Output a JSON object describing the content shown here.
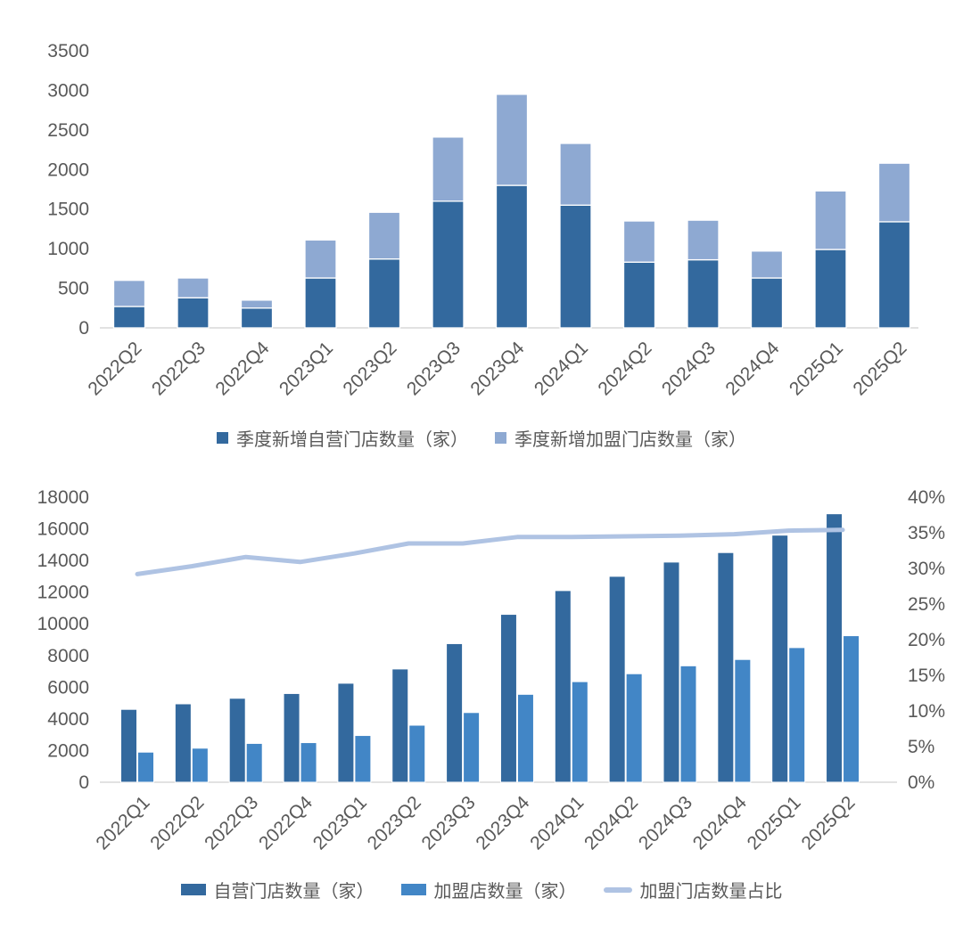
{
  "colors": {
    "self_operated_dark": "#33699E",
    "franchise_pale": "#8EA9D2",
    "franchise_medium": "#4286C6",
    "ratio_line": "#AFC3E3",
    "axis_text": "#595959",
    "axis_line": "#D9D9D9"
  },
  "chart_data": [
    {
      "type": "bar",
      "variant": "stacked",
      "title": "",
      "categories": [
        "2022Q2",
        "2022Q3",
        "2022Q4",
        "2023Q1",
        "2023Q2",
        "2023Q3",
        "2023Q4",
        "2024Q1",
        "2024Q2",
        "2024Q3",
        "2024Q4",
        "2025Q1",
        "2025Q2"
      ],
      "series": [
        {
          "name": "季度新增自营门店数量（家）",
          "color_key": "self_operated_dark",
          "values": [
            270,
            380,
            250,
            630,
            870,
            1600,
            1800,
            1550,
            830,
            860,
            630,
            990,
            1340
          ]
        },
        {
          "name": "季度新增加盟门店数量（家）",
          "color_key": "franchise_pale",
          "values": [
            330,
            250,
            100,
            480,
            590,
            810,
            1150,
            780,
            520,
            500,
            340,
            740,
            740
          ]
        }
      ],
      "ylim": [
        0,
        3500
      ],
      "ytick_step": 500,
      "grid": false,
      "legend_position": "bottom"
    },
    {
      "type": "bar",
      "variant": "grouped-with-line",
      "title": "",
      "categories": [
        "2022Q1",
        "2022Q2",
        "2022Q3",
        "2022Q4",
        "2023Q1",
        "2023Q2",
        "2023Q3",
        "2023Q4",
        "2024Q1",
        "2024Q2",
        "2024Q3",
        "2024Q4",
        "2025Q1",
        "2025Q2"
      ],
      "series": [
        {
          "name": "自营门店数量（家）",
          "color_key": "self_operated_dark",
          "values": [
            4600,
            4950,
            5300,
            5600,
            6250,
            7150,
            8750,
            10600,
            12100,
            13000,
            13900,
            14500,
            15600,
            16950
          ]
        },
        {
          "name": "加盟店数量（家）",
          "color_key": "franchise_medium",
          "values": [
            1900,
            2150,
            2450,
            2500,
            2950,
            3600,
            4400,
            5550,
            6350,
            6850,
            7350,
            7750,
            8500,
            9250
          ]
        }
      ],
      "line_series": {
        "name": "加盟门店数量占比",
        "color_key": "ratio_line",
        "axis": "right",
        "values_pct": [
          29.2,
          30.3,
          31.6,
          30.9,
          32.1,
          33.5,
          33.5,
          34.4,
          34.4,
          34.5,
          34.6,
          34.8,
          35.3,
          35.4
        ]
      },
      "ylim": [
        0,
        18000
      ],
      "ytick_step": 2000,
      "y2lim": [
        0,
        40
      ],
      "y2tick_step": 5,
      "y2suffix": "%",
      "grid": false,
      "legend_position": "bottom"
    }
  ]
}
